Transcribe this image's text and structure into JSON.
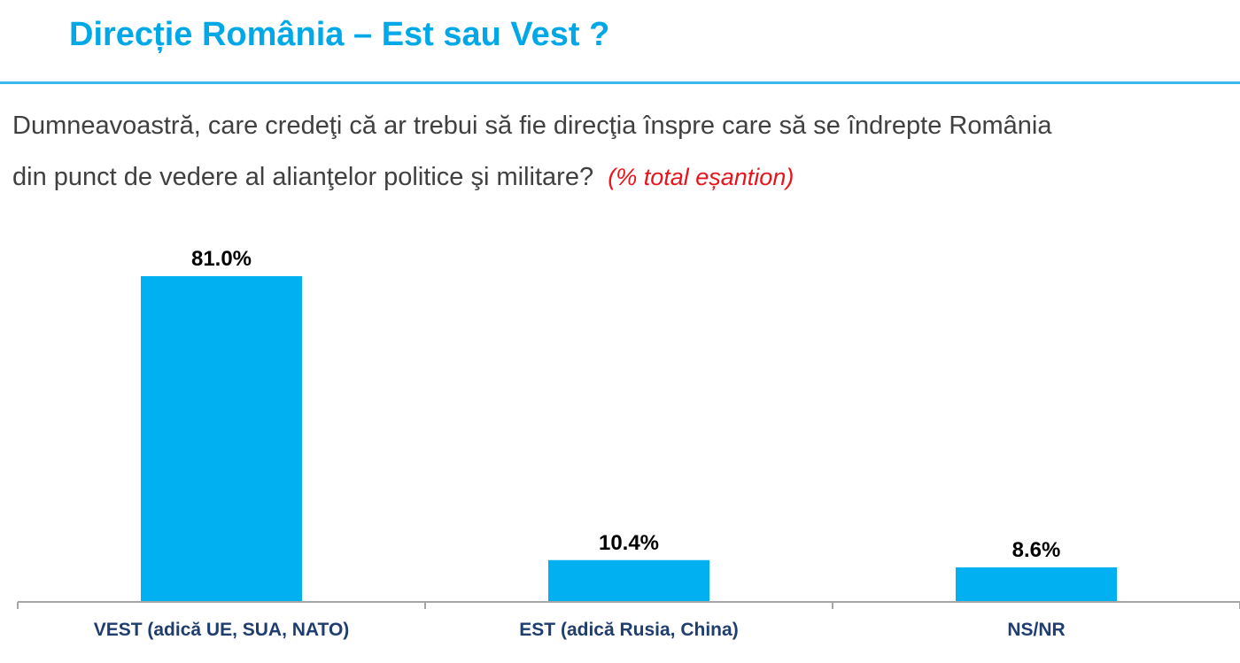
{
  "header": {
    "title": "Direcție România – Est sau Vest ?"
  },
  "question": {
    "line1": "Dumneavoastră, care credeţi că ar trebui să fie direcţia înspre care să se îndrepte România",
    "line2": "din punct de vedere al alianţelor politice şi militare?",
    "note": "(% total eșantion)"
  },
  "colors": {
    "title": "#00a8e8",
    "bar": "#00b0f0",
    "note": "#e8141b",
    "category_text": "#1f3d6e"
  },
  "chart_data": {
    "type": "bar",
    "categories": [
      "VEST (adică UE, SUA, NATO)",
      "EST (adică Rusia, China)",
      "NS/NR"
    ],
    "values": [
      81.0,
      10.4,
      8.6
    ],
    "value_labels": [
      "81.0%",
      "10.4%",
      "8.6%"
    ],
    "ylim": [
      0,
      100
    ],
    "grid": false,
    "legend": "none"
  }
}
